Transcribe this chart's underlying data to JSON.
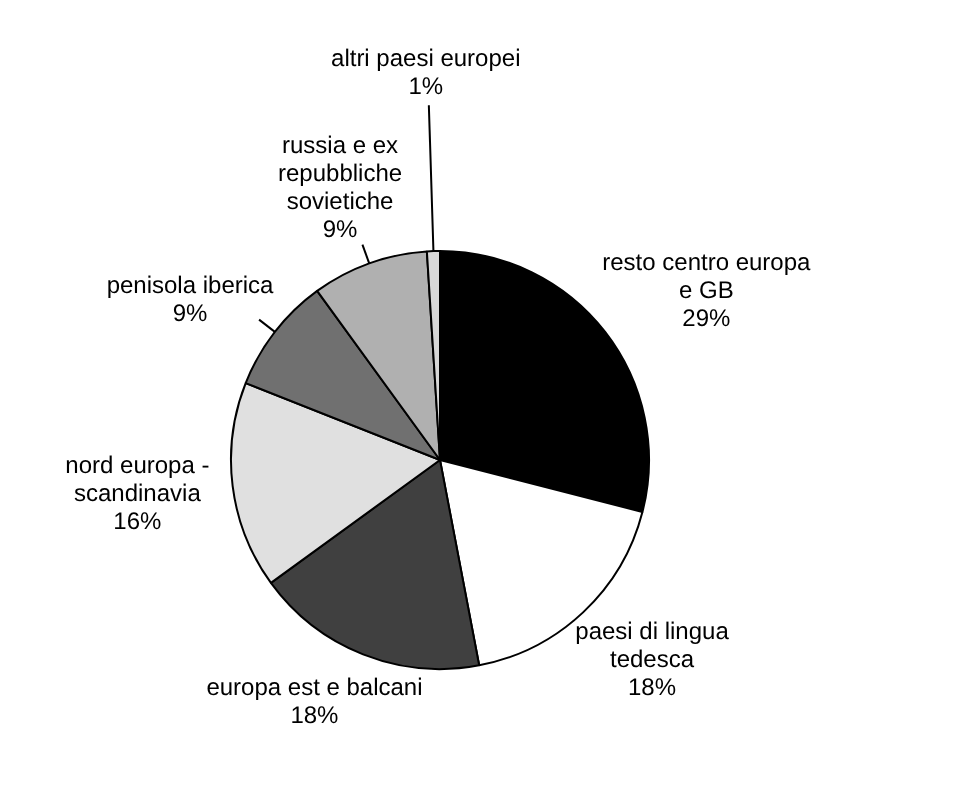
{
  "chart_data": {
    "type": "pie",
    "categories": [
      "resto centro europa e GB",
      "paesi di lingua tedesca",
      "europa est e balcani",
      "nord europa - scandinavia",
      "penisola iberica",
      "russia e ex repubbliche sovietiche",
      "altri paesi europei"
    ],
    "values": [
      29,
      18,
      18,
      16,
      9,
      9,
      1
    ],
    "value_labels": [
      "29%",
      "18%",
      "18%",
      "16%",
      "9%",
      "9%",
      "1%"
    ],
    "colors": [
      "#000000",
      "#ffffff",
      "#404040",
      "#e0e0e0",
      "#707070",
      "#b0b0b0",
      "#d8d8d8"
    ],
    "legend": false
  }
}
